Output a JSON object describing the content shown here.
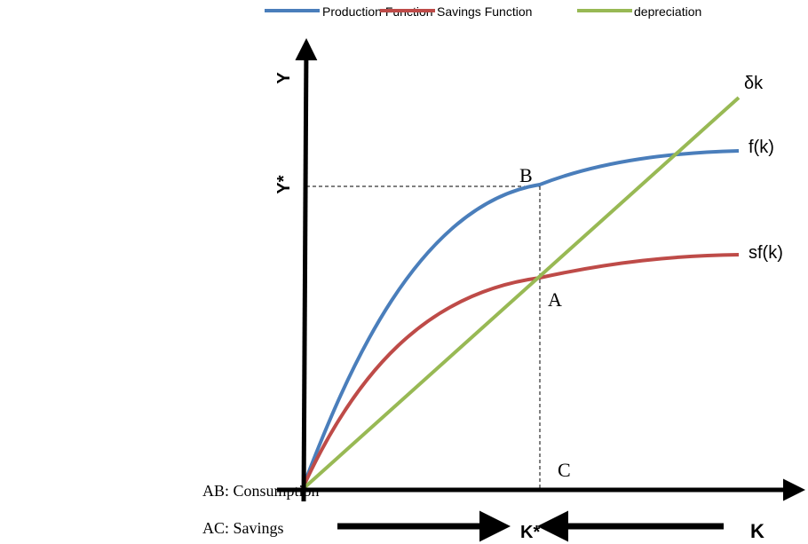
{
  "legend": [
    "Production Function",
    "Savings Function",
    "depreciation"
  ],
  "axes": {
    "y": "Y",
    "y_star": "Y*",
    "x": "K",
    "x_star": "K*"
  },
  "curve_labels": {
    "depreciation": "δk",
    "production": "f(k)",
    "savings": "sf(k)"
  },
  "points": {
    "a": "A",
    "b": "B",
    "c": "C"
  },
  "notes": [
    "AB: Consumption",
    "AC: Savings"
  ]
}
